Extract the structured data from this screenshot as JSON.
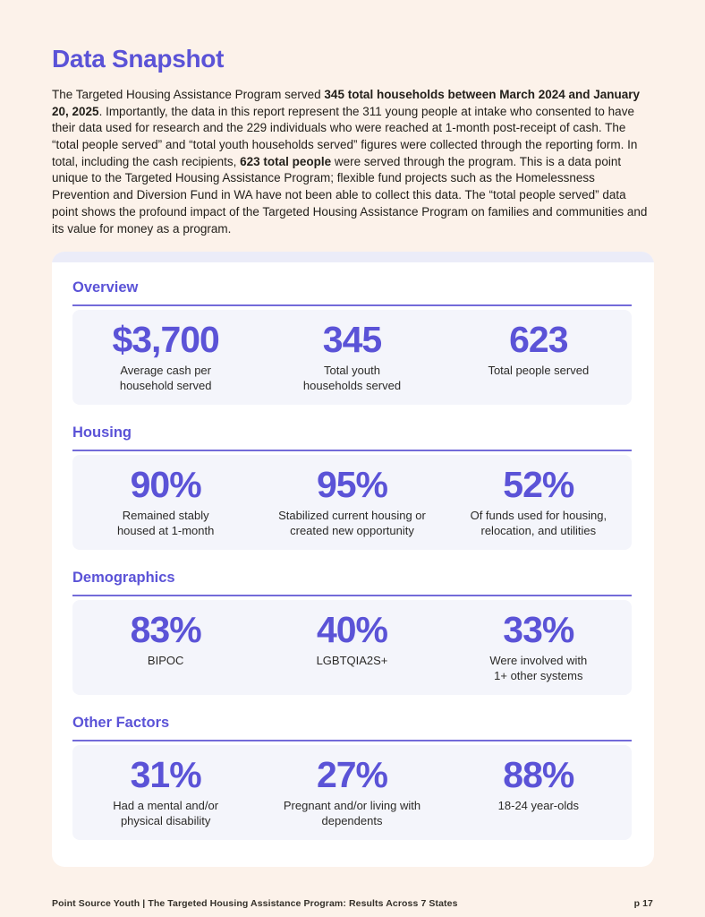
{
  "page": {
    "title": "Data Snapshot",
    "colors": {
      "accent_purple": "#5B53D7",
      "page_background": "#FCF2EA",
      "card_background": "#FFFFFF",
      "card_top_strip": "#EBECF8",
      "stat_box_background": "#F4F5FB",
      "divider": "#736BD9",
      "body_text": "#211E19"
    },
    "intro": {
      "segments": [
        {
          "bold": false,
          "text": "The Targeted Housing Assistance Program served "
        },
        {
          "bold": true,
          "text": "345 total households between March 2024 and January 20, 2025"
        },
        {
          "bold": false,
          "text": ". Importantly, the data in this report represent the 311 young people at intake who consented to have their data used for research and the 229 individuals who were reached at 1-month post-receipt of cash. The “total people served” and “total youth households served” figures were collected through the reporting form. In total, including the cash recipients, "
        },
        {
          "bold": true,
          "text": "623 total people"
        },
        {
          "bold": false,
          "text": " were served through the program. This is a data point unique to the Targeted Housing Assistance Program; flexible fund projects such as the Homelessness Prevention and Diversion Fund in WA have not been able to collect this data. The “total people served” data point shows the profound impact of the Targeted Housing Assistance Program on families and communities and its value for money as a program."
        }
      ]
    },
    "sections": [
      {
        "heading": "Overview",
        "stats": [
          {
            "value": "$3,700",
            "label": "Average cash per\nhousehold served"
          },
          {
            "value": "345",
            "label": "Total youth\nhouseholds served"
          },
          {
            "value": "623",
            "label": "Total people served"
          }
        ]
      },
      {
        "heading": "Housing",
        "stats": [
          {
            "value": "90%",
            "label": "Remained stably\nhoused at 1-month"
          },
          {
            "value": "95%",
            "label": "Stabilized current housing or\ncreated new opportunity"
          },
          {
            "value": "52%",
            "label": "Of funds used for housing,\nrelocation, and utilities"
          }
        ]
      },
      {
        "heading": "Demographics",
        "stats": [
          {
            "value": "83%",
            "label": "BIPOC"
          },
          {
            "value": "40%",
            "label": "LGBTQIA2S+"
          },
          {
            "value": "33%",
            "label": "Were involved with\n1+ other systems"
          }
        ]
      },
      {
        "heading": "Other Factors",
        "stats": [
          {
            "value": "31%",
            "label": "Had a mental and/or\nphysical disability"
          },
          {
            "value": "27%",
            "label": "Pregnant and/or living with\ndependents"
          },
          {
            "value": "88%",
            "label": "18-24 year-olds"
          }
        ]
      }
    ],
    "footer": {
      "left": "Point Source Youth | The Targeted Housing Assistance Program: Results Across 7 States",
      "right": "p 17"
    }
  }
}
